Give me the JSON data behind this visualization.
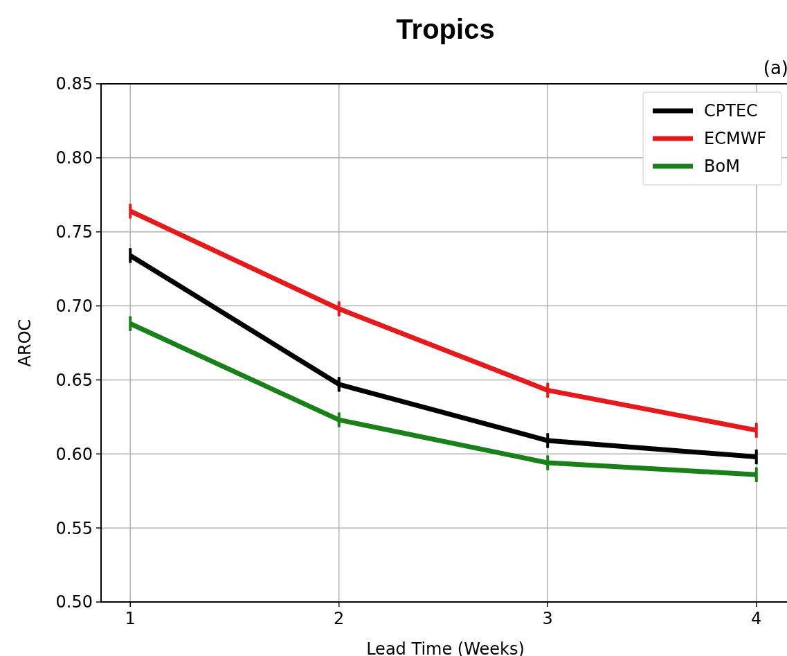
{
  "chart_data": {
    "type": "line",
    "title": "Tropics",
    "annotations": [
      "(a)"
    ],
    "xlabel": "Lead Time (Weeks)",
    "ylabel": "AROC",
    "x": [
      1,
      2,
      3,
      4
    ],
    "xlim": [
      0.86,
      4.16
    ],
    "xticks": [
      1,
      2,
      3,
      4
    ],
    "ylim": [
      0.5,
      0.85
    ],
    "yticks": [
      {
        "value": 0.5,
        "label": "0.50"
      },
      {
        "value": 0.55,
        "label": "0.55"
      },
      {
        "value": 0.6,
        "label": "0.60"
      },
      {
        "value": 0.65,
        "label": "0.65"
      },
      {
        "value": 0.7,
        "label": "0.70"
      },
      {
        "value": 0.75,
        "label": "0.75"
      },
      {
        "value": 0.8,
        "label": "0.80"
      },
      {
        "value": 0.85,
        "label": "0.85"
      }
    ],
    "grid": true,
    "legend": "top right",
    "marker": "none",
    "line_style": "solid",
    "series": [
      {
        "name": "CPTEC",
        "color": "#000000",
        "values": [
          0.734,
          0.647,
          0.609,
          0.598
        ],
        "errors": [
          0.005,
          0.005,
          0.005,
          0.005
        ]
      },
      {
        "name": "ECMWF",
        "color": "#e41a1c",
        "values": [
          0.764,
          0.698,
          0.643,
          0.616
        ],
        "errors": [
          0.005,
          0.005,
          0.005,
          0.005
        ]
      },
      {
        "name": "BoM",
        "color": "#1a8019",
        "values": [
          0.688,
          0.623,
          0.594,
          0.586
        ],
        "errors": [
          0.005,
          0.005,
          0.005,
          0.005
        ]
      }
    ]
  }
}
